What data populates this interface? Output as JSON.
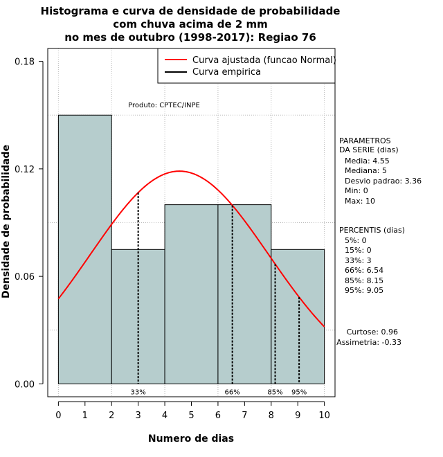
{
  "chart_data": {
    "type": "bar",
    "title_lines": [
      "Histograma e curva de densidade de probabilidade",
      "com chuva acima de 2 mm",
      "no mes de outubro (1998-2017): Regiao 76"
    ],
    "xlabel": "Numero de dias",
    "ylabel": "Densidade de probabilidade",
    "xlim": [
      -0.4,
      10.4
    ],
    "ylim": [
      -0.0072,
      0.1872
    ],
    "x_ticks": [
      0,
      1,
      2,
      3,
      4,
      5,
      6,
      7,
      8,
      9,
      10
    ],
    "y_ticks": [
      0.0,
      0.06,
      0.12,
      0.18
    ],
    "y_tick_labels": [
      "0.00",
      "0.06",
      "0.12",
      "0.18"
    ],
    "grid_x": [
      0,
      2,
      4,
      6,
      8,
      10
    ],
    "grid_y": [
      0.03,
      0.09,
      0.15
    ],
    "bins": [
      {
        "start": 0,
        "end": 2,
        "density": 0.15
      },
      {
        "start": 2,
        "end": 4,
        "density": 0.075
      },
      {
        "start": 4,
        "end": 6,
        "density": 0.1
      },
      {
        "start": 6,
        "end": 8,
        "density": 0.1
      },
      {
        "start": 8,
        "end": 10,
        "density": 0.075
      }
    ],
    "bar_color": "#b6cdcd",
    "normal_fit": {
      "mean": 4.55,
      "sd": 3.36,
      "color": "#ff0000"
    },
    "percentile_markers": [
      {
        "label": "33%",
        "x": 3
      },
      {
        "label": "66%",
        "x": 6.54
      },
      {
        "label": "85%",
        "x": 8.15
      },
      {
        "label": "95%",
        "x": 9.05
      }
    ],
    "legend": {
      "position": "top-right",
      "entries": [
        {
          "label": "Curva ajustada (funcao Normal)",
          "color": "#ff0000"
        },
        {
          "label": "Curva empirica",
          "color": "#000000"
        }
      ]
    },
    "product_label": "Produto: CPTEC/INPE"
  },
  "side_panel": {
    "params_title": [
      "PARAMETROS",
      "DA SERIE (dias)"
    ],
    "params": [
      "Media: 4.55",
      "Mediana: 5",
      "Desvio padrao: 3.36",
      "Min: 0",
      "Max: 10"
    ],
    "percentis_title": "PERCENTIS (dias)",
    "percentis": [
      "5%: 0",
      "15%: 0",
      "33%: 3",
      "66%: 6.54",
      "85%: 8.15",
      "95%: 9.05"
    ],
    "curtose": "Curtose: 0.96",
    "assimetria": "Assimetria: -0.33"
  }
}
